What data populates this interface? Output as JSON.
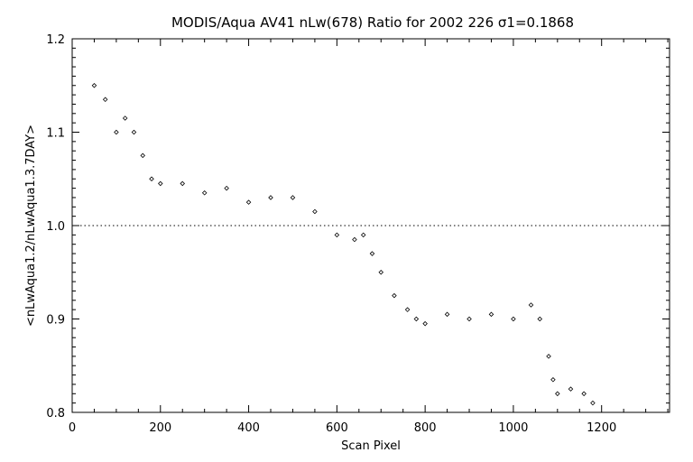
{
  "chart_data": {
    "type": "scatter",
    "title": "MODIS/Aqua AV41 nLw(678) Ratio for 2002 226 σ1=0.1868",
    "xlabel": "Scan Pixel",
    "ylabel": "<nLwAqua1.2/nLwAqua1.3.7DAY>",
    "xlim": [
      0,
      1354
    ],
    "ylim": [
      0.8,
      1.2
    ],
    "x_ticks": [
      "0",
      "200",
      "400",
      "600",
      "800",
      "1000",
      "1200"
    ],
    "y_ticks": [
      "0.8",
      "0.9",
      "1.0",
      "1.1",
      "1.2"
    ],
    "reference_line": {
      "y": 1.0,
      "style": "dotted"
    },
    "grid": false,
    "marker": "diamond",
    "series": [
      {
        "x": [
          50,
          75,
          100,
          120,
          140,
          160,
          180,
          200,
          250,
          300,
          350,
          400,
          450,
          500,
          550,
          600,
          640,
          660,
          680,
          700,
          730,
          760,
          780,
          800,
          850,
          900,
          950,
          1000,
          1040,
          1060,
          1080,
          1090,
          1100,
          1130,
          1160,
          1180
        ],
        "y": [
          1.15,
          1.135,
          1.1,
          1.115,
          1.1,
          1.075,
          1.05,
          1.045,
          1.045,
          1.035,
          1.04,
          1.025,
          1.03,
          1.03,
          1.015,
          0.99,
          0.985,
          0.99,
          0.97,
          0.95,
          0.925,
          0.91,
          0.9,
          0.895,
          0.905,
          0.9,
          0.905,
          0.9,
          0.915,
          0.9,
          0.86,
          0.835,
          0.82,
          0.825,
          0.82,
          0.81
        ]
      }
    ]
  }
}
